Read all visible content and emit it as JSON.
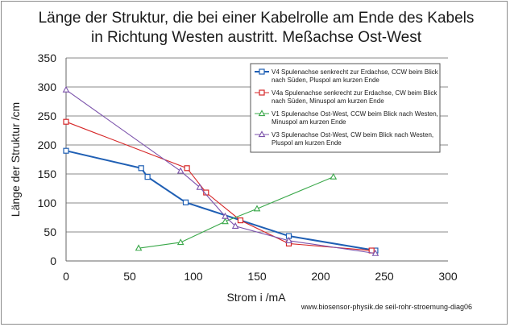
{
  "chart_data": {
    "type": "scatter",
    "title_lines": [
      "Länge der Struktur, die bei einer Kabelrolle am Ende des Kabels",
      "in Richtung Westen austritt.  Meßachse Ost-West"
    ],
    "xlabel": "Strom i /mA",
    "ylabel": "Länge der Struktur /cm",
    "xlim": [
      0,
      300
    ],
    "ylim": [
      0,
      350
    ],
    "xticks": [
      "0",
      "50",
      "100",
      "150",
      "200",
      "250",
      "300"
    ],
    "yticks": [
      "0",
      "50",
      "100",
      "150",
      "200",
      "250",
      "300",
      "350"
    ],
    "grid": true,
    "legend_position": "top-right",
    "footer": "www.biosensor-physik.de seil-rohr-stroemung-diag06",
    "series": [
      {
        "name_lines": [
          "V4 Spulenachse senkrecht zur Erdachse, CCW beim Blick",
          "nach Süden, Pluspol am kurzen Ende"
        ],
        "color": "#1f5fb4",
        "marker": "square",
        "x": [
          0,
          59,
          64,
          94,
          175,
          243
        ],
        "y": [
          190,
          160,
          145,
          101,
          43,
          18
        ]
      },
      {
        "name_lines": [
          "V4a Spulenachse senkrecht zur Erdachse, CW beim Blick",
          "nach Süden, Minuspol am kurzen Ende"
        ],
        "color": "#d62728",
        "marker": "square",
        "x": [
          0,
          95,
          110,
          137,
          175,
          240
        ],
        "y": [
          240,
          160,
          118,
          70,
          30,
          18
        ]
      },
      {
        "name_lines": [
          "V1 Spulenachse Ost-West, CCW beim Blick nach Westen,",
          "Minuspol am kurzen Ende"
        ],
        "color": "#3aa84a",
        "marker": "triangle",
        "x": [
          57,
          90,
          125,
          150,
          210
        ],
        "y": [
          22,
          32,
          68,
          90,
          145
        ]
      },
      {
        "name_lines": [
          "V3 Spulenachse Ost-West, CW beim Blick nach Westen,",
          "Pluspol am kurzen Ende"
        ],
        "color": "#7b52ab",
        "marker": "triangle",
        "x": [
          0,
          90,
          105,
          125,
          133,
          175,
          243
        ],
        "y": [
          295,
          155,
          127,
          77,
          60,
          35,
          13
        ]
      }
    ]
  }
}
